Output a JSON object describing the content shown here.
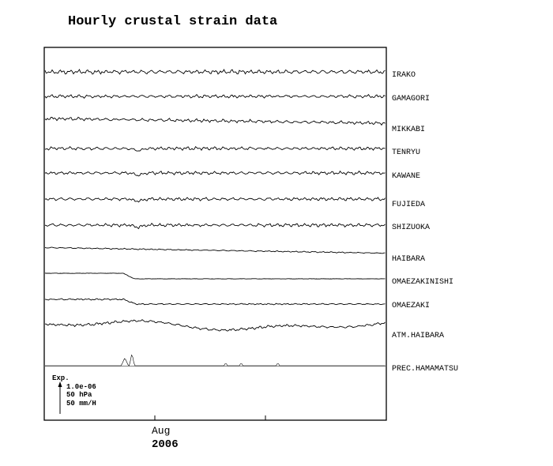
{
  "chart_data": {
    "type": "line",
    "title": "Hourly crustal strain data",
    "x_tick_labels": [
      "Aug",
      "2006"
    ],
    "scale_legend": {
      "label": "Exp.",
      "lines": [
        "1.0e-06",
        "50 hPa",
        "50 mm/H"
      ]
    },
    "series": [
      {
        "name": "IRAKO"
      },
      {
        "name": "GAMAGORI"
      },
      {
        "name": "MIKKABI"
      },
      {
        "name": "TENRYU"
      },
      {
        "name": "KAWANE"
      },
      {
        "name": "FUJIEDA"
      },
      {
        "name": "SHIZUOKA"
      },
      {
        "name": "HAIBARA"
      },
      {
        "name": "OMAEZAKINISHI"
      },
      {
        "name": "OMAEZAKI"
      },
      {
        "name": "ATM.HAIBARA"
      },
      {
        "name": "PREC.HAMAMATSU"
      }
    ]
  }
}
